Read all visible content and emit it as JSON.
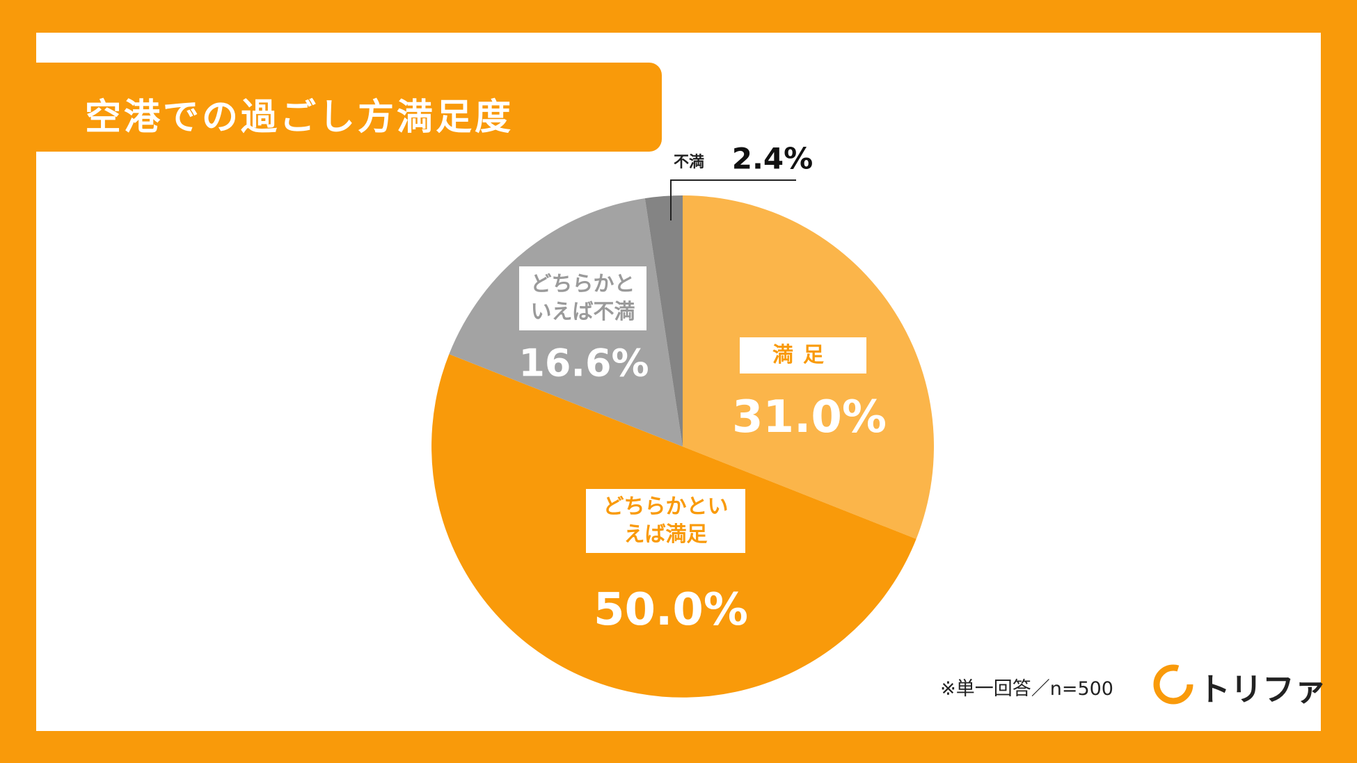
{
  "chart_data": {
    "type": "pie",
    "title": "空港での過ごし方満足度",
    "categories": [
      "満足",
      "どちらかといえば満足",
      "どちらかといえば不満",
      "不満"
    ],
    "values": [
      31.0,
      50.0,
      16.6,
      2.4
    ],
    "value_labels": [
      "31.0%",
      "50.0%",
      "16.6%",
      "2.4%"
    ],
    "colors": [
      "#fbb54a",
      "#f99a0a",
      "#a3a3a3",
      "#848484"
    ],
    "note": "※単一回答／n=500",
    "brand": "トリファ"
  }
}
